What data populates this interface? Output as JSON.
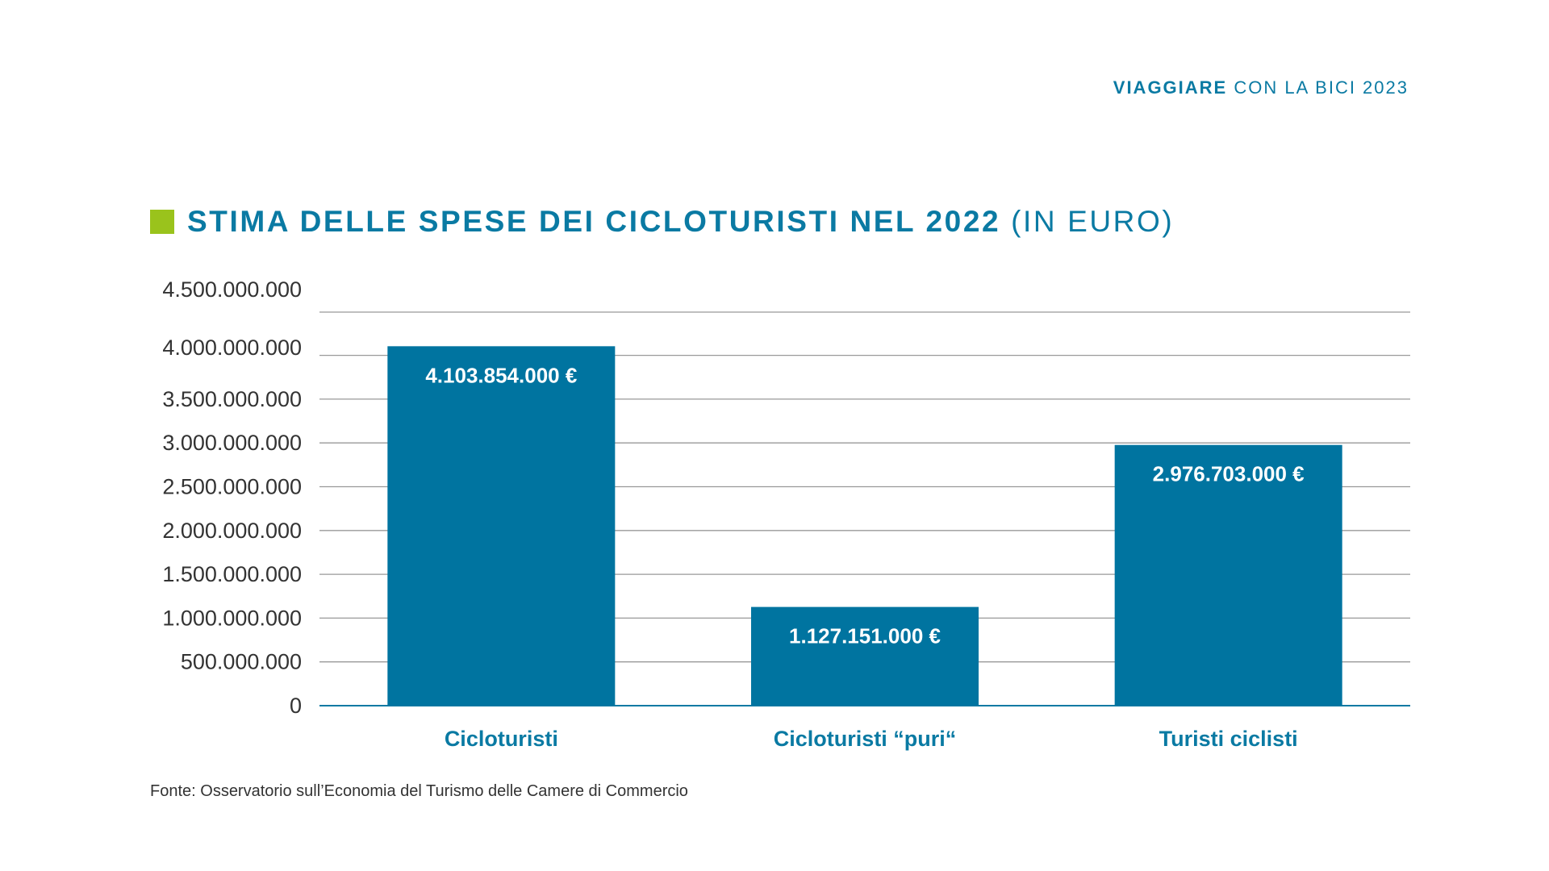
{
  "header": {
    "strong": "VIAGGIARE",
    "rest": " CON LA BICI 2023"
  },
  "title": {
    "strong": "STIMA DELLE SPESE DEI CICLOTURISTI NEL 2022",
    "rest": " (IN EURO)"
  },
  "source": "Fonte: Osservatorio sull’Economia del Turismo delle Camere di Commercio",
  "colors": {
    "bar": "#0074a0",
    "accent": "#0a7aa3",
    "square": "#9ac31c",
    "grid": "#999999"
  },
  "chart_data": {
    "type": "bar",
    "title": "STIMA DELLE SPESE DEI CICLOTURISTI NEL 2022 (IN EURO)",
    "xlabel": "",
    "ylabel": "",
    "categories": [
      "Cicloturisti",
      "Cicloturisti “puri“",
      "Turisti ciclisti"
    ],
    "values": [
      4103854000,
      1127151000,
      2976703000
    ],
    "value_labels": [
      "4.103.854.000 €",
      "1.127.151.000 €",
      "2.976.703.000 €"
    ],
    "ylim": [
      0,
      4500000000
    ],
    "yticks": [
      0,
      500000000,
      1000000000,
      1500000000,
      2000000000,
      2500000000,
      3000000000,
      3500000000,
      4000000000,
      4500000000
    ],
    "ytick_labels": [
      "0",
      "500.000.000",
      "1.000.000.000",
      "1.500.000.000",
      "2.000.000.000",
      "2.500.000.000",
      "3.000.000.000",
      "3.500.000.000",
      "4.000.000.000",
      "4.500.000.000"
    ],
    "grid": true,
    "legend": "none"
  }
}
